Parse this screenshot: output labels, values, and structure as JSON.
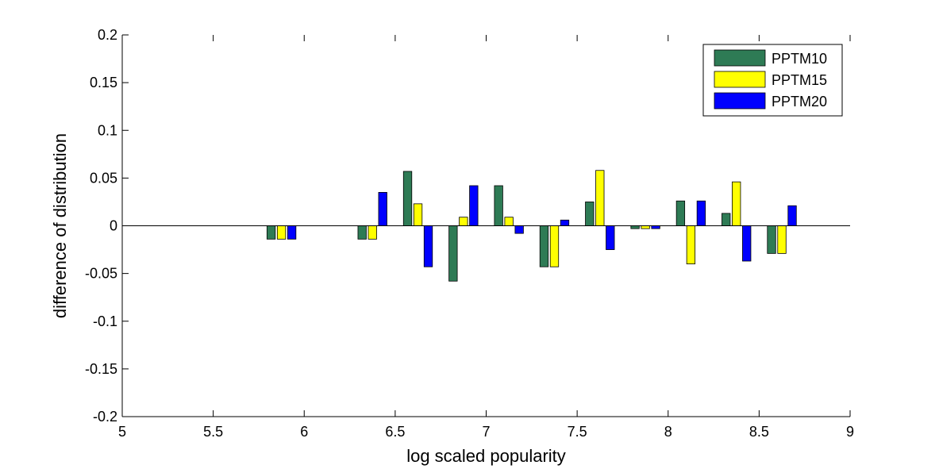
{
  "chart_data": {
    "type": "bar",
    "title": "",
    "xlabel": "log scaled popularity",
    "ylabel": "difference of distribution",
    "xlim": [
      5,
      9
    ],
    "ylim": [
      -0.2,
      0.2
    ],
    "xticks": [
      5,
      5.5,
      6,
      6.5,
      7,
      7.5,
      8,
      8.5,
      9
    ],
    "xtick_labels": [
      "5",
      "5.5",
      "6",
      "6.5",
      "7",
      "7.5",
      "8",
      "8.5",
      "9"
    ],
    "yticks": [
      -0.2,
      -0.15,
      -0.1,
      -0.05,
      0,
      0.05,
      0.1,
      0.15,
      0.2
    ],
    "ytick_labels": [
      "-0.2",
      "-0.15",
      "-0.1",
      "-0.05",
      "0",
      "0.05",
      "0.1",
      "0.15",
      "0.2"
    ],
    "grid": false,
    "legend_position": "top-right",
    "x": [
      5.875,
      6.375,
      6.625,
      6.875,
      7.125,
      7.375,
      7.625,
      7.875,
      8.125,
      8.375,
      8.625
    ],
    "series": [
      {
        "name": "PPTM10",
        "color": "#2e7b55",
        "values": [
          -0.014,
          -0.014,
          0.057,
          -0.058,
          0.042,
          -0.043,
          0.025,
          -0.003,
          0.026,
          0.013,
          -0.029
        ]
      },
      {
        "name": "PPTM15",
        "color": "#ffff00",
        "values": [
          -0.014,
          -0.014,
          0.023,
          0.009,
          0.009,
          -0.043,
          0.058,
          -0.003,
          -0.04,
          0.046,
          -0.029
        ]
      },
      {
        "name": "PPTM20",
        "color": "#0000ff",
        "values": [
          -0.014,
          0.035,
          -0.043,
          0.042,
          -0.008,
          0.006,
          -0.025,
          -0.003,
          0.026,
          -0.037,
          0.021
        ]
      }
    ]
  }
}
